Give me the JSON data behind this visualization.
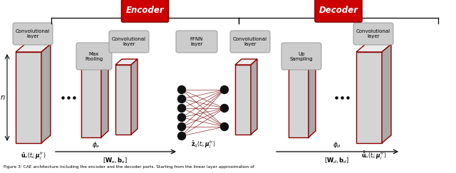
{
  "bg_color": "#ffffff",
  "block_face_color": "#d4d4d4",
  "block_edge_color": "#8b0000",
  "block_top_color": "#ebebeb",
  "block_side_color": "#aaaaaa",
  "box_bg": "#cccccc",
  "box_edge": "#999999",
  "node_color": "#111111",
  "header_bg": "#cc0000",
  "header_text": "#ffffff",
  "encoder_label": "Encoder",
  "decoder_label": "Decoder",
  "label_left": "$\\bar{\\mathbf{u}}_n(t_i; \\boldsymbol{\\mu}_j^{tr})$",
  "label_right": "$\\tilde{\\bar{\\mathbf{u}}}_n(t_i; \\boldsymbol{\\mu}_j^{tr})$",
  "label_n": "$n$",
  "label_phi_e": "$\\phi_e$",
  "label_phi_d": "$\\phi_d$",
  "label_latent": "$\\tilde{\\mathbf{z}}_q(t_i; \\boldsymbol{\\mu}_j^{tr})$",
  "label_We": "$[\\mathbf{W}_e, \\mathbf{b}_e]$",
  "label_Wd": "$[\\mathbf{W}_d, \\mathbf{b}_d]$",
  "box_labels": [
    "Convolutional\nlayer",
    "Max\nPooling",
    "Convolutional\nlayer",
    "FFNN\nlayer",
    "Convolutional\nlayer",
    "Up\nSampling",
    "Convolutional\nlayer"
  ],
  "caption": "Figure 3: CAE architecture including the encoder and the decoder parts. Starting from the linear layer approximation of"
}
